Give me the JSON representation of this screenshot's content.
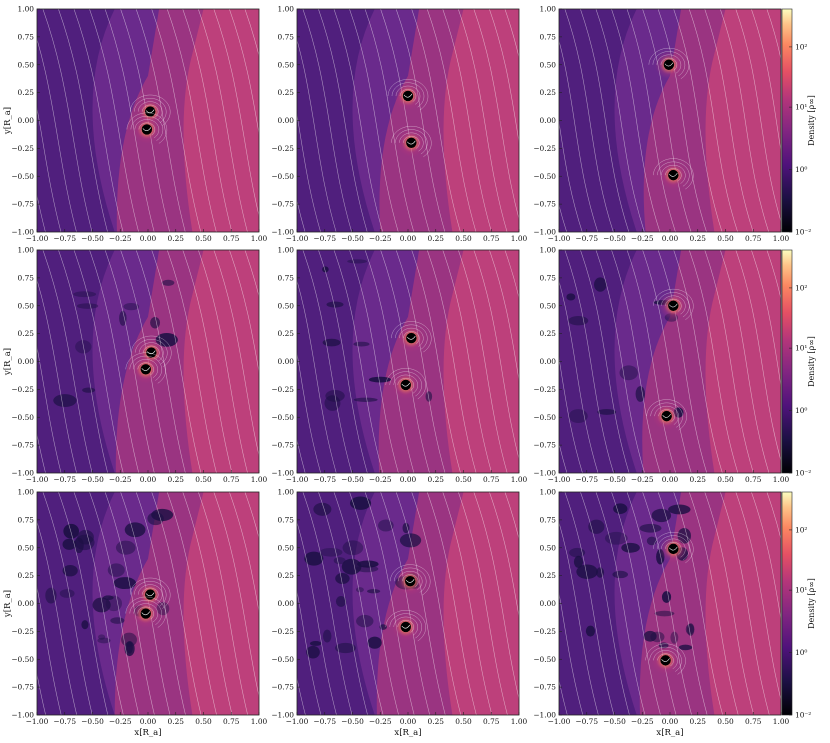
{
  "chart_data": {
    "type": "heatmap",
    "grid": {
      "rows": 3,
      "cols": 3
    },
    "xlabel": "x[R_a]",
    "ylabel": "y[R_a]",
    "xlim": [
      -1.0,
      1.0
    ],
    "ylim": [
      -1.0,
      1.0
    ],
    "xticks": [
      "−1.00",
      "−0.75",
      "−0.50",
      "−0.25",
      "0.00",
      "0.25",
      "0.50",
      "0.75",
      "1.00"
    ],
    "yticks": [
      "1.00",
      "0.75",
      "0.50",
      "0.25",
      "0.00",
      "−0.25",
      "−0.50",
      "−0.75",
      "−1.00"
    ],
    "colorbar": {
      "label": "Density [ρ∞]",
      "scale": "log",
      "range": [
        0.01,
        300
      ],
      "ticks": [
        "10²",
        "10¹",
        "10⁰",
        "10⁻²"
      ],
      "colormap": "magma"
    },
    "panels": [
      {
        "row": 0,
        "col": 0,
        "sinks": [
          [
            0.02,
            0.08
          ],
          [
            -0.01,
            -0.08
          ]
        ],
        "bg_density": 1.5,
        "shock_angle": 0.9
      },
      {
        "row": 0,
        "col": 1,
        "sinks": [
          [
            0.0,
            0.22
          ],
          [
            0.03,
            -0.2
          ]
        ],
        "bg_density": 1.8,
        "shock_angle": 0.75
      },
      {
        "row": 0,
        "col": 2,
        "sinks": [
          [
            -0.01,
            0.5
          ],
          [
            0.03,
            -0.49
          ]
        ],
        "bg_density": 2.0,
        "shock_angle": 0.6
      },
      {
        "row": 1,
        "col": 0,
        "sinks": [
          [
            0.03,
            0.08
          ],
          [
            -0.02,
            -0.07
          ]
        ],
        "bg_density": 1.6,
        "shock_angle": 0.95
      },
      {
        "row": 1,
        "col": 1,
        "sinks": [
          [
            0.03,
            0.21
          ],
          [
            -0.02,
            -0.21
          ]
        ],
        "bg_density": 1.7,
        "shock_angle": 0.8
      },
      {
        "row": 1,
        "col": 2,
        "sinks": [
          [
            0.03,
            0.5
          ],
          [
            -0.03,
            -0.49
          ]
        ],
        "bg_density": 1.9,
        "shock_angle": 0.7
      },
      {
        "row": 2,
        "col": 0,
        "sinks": [
          [
            0.02,
            0.08
          ],
          [
            -0.02,
            -0.09
          ]
        ],
        "bg_density": 2.2,
        "shock_angle": 1.0
      },
      {
        "row": 2,
        "col": 1,
        "sinks": [
          [
            0.02,
            0.2
          ],
          [
            -0.02,
            -0.21
          ]
        ],
        "bg_density": 2.4,
        "shock_angle": 0.9
      },
      {
        "row": 2,
        "col": 2,
        "sinks": [
          [
            0.03,
            0.49
          ],
          [
            -0.04,
            -0.51
          ]
        ],
        "bg_density": 2.6,
        "shock_angle": 0.85
      }
    ]
  }
}
